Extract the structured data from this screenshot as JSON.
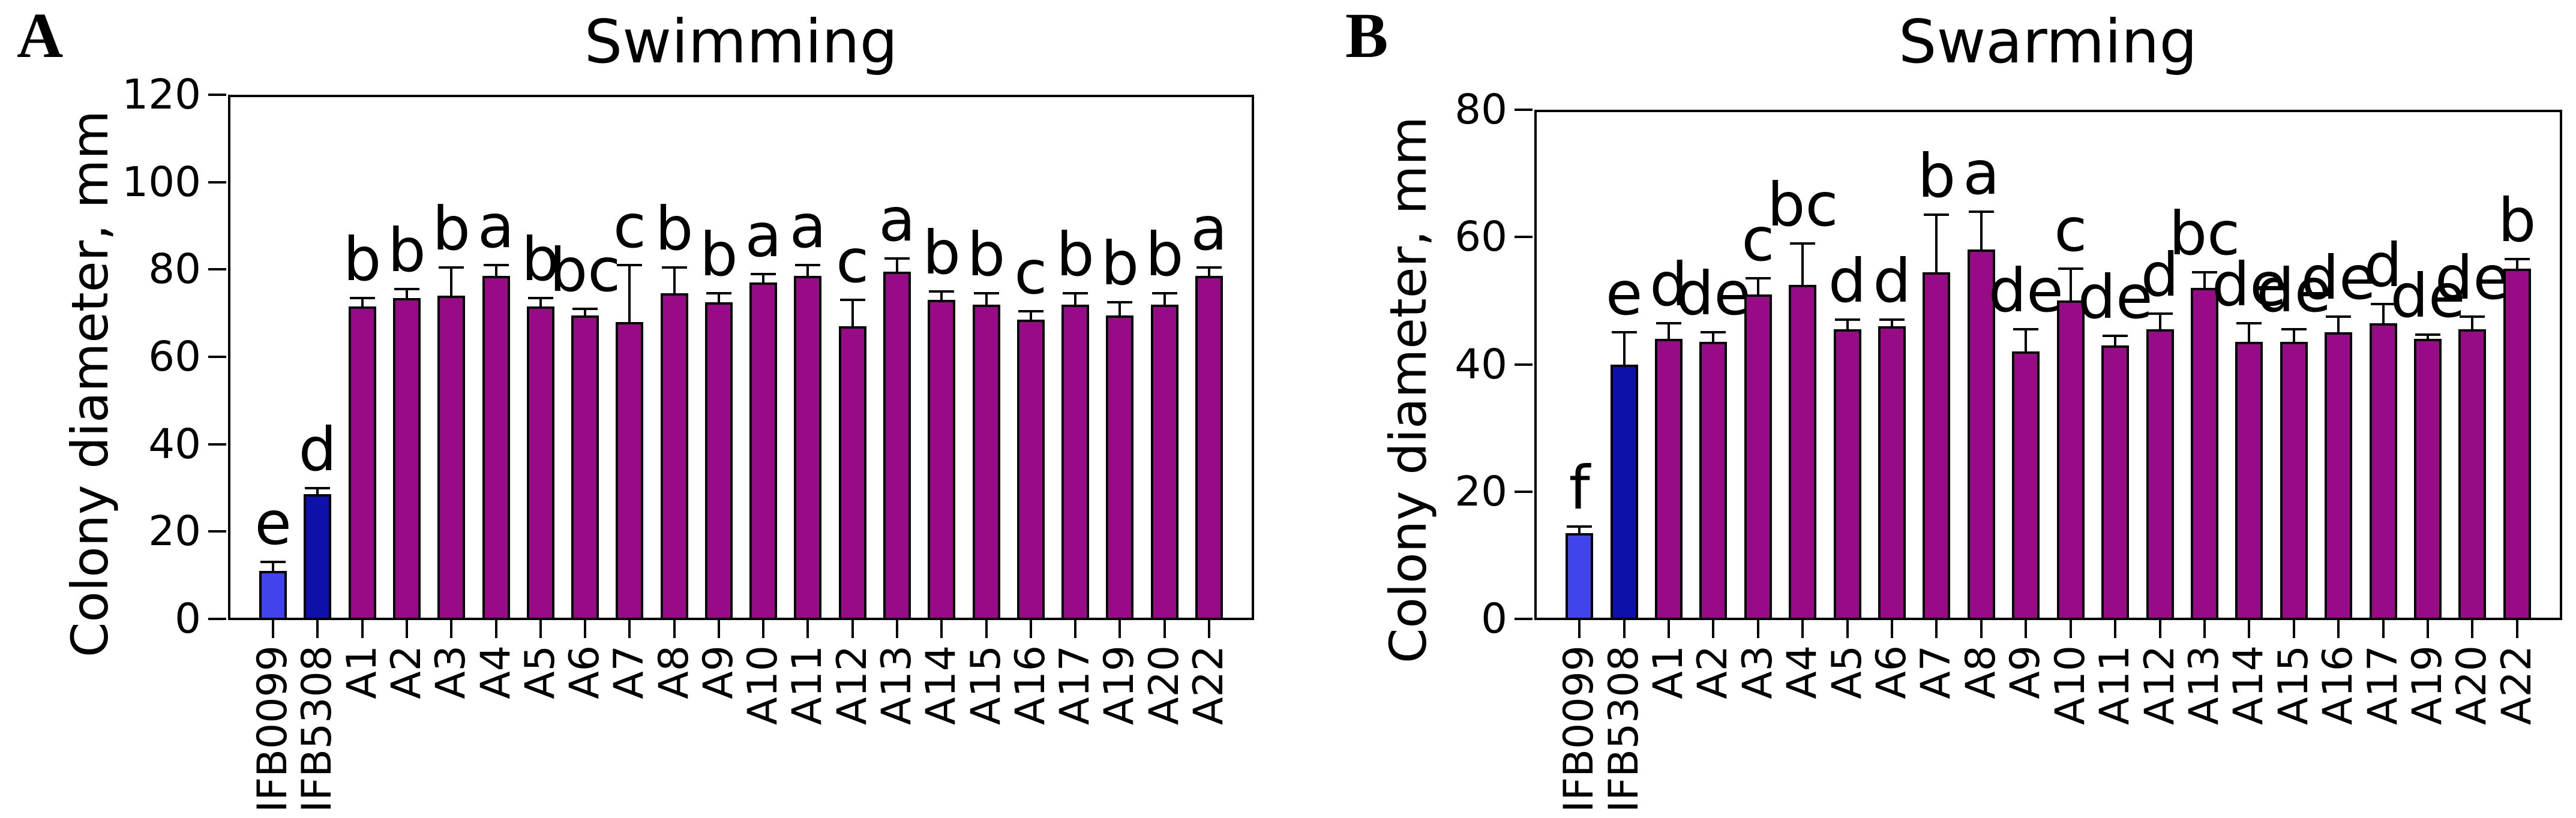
{
  "figure_caption_letters": [
    "A",
    "B"
  ],
  "colors": {
    "light_blue": "#4143EB",
    "dark_blue": "#0E10AA",
    "purple": "#970C86",
    "axis": "#000000"
  },
  "chart_data": [
    {
      "type": "bar",
      "panel_label": "A",
      "title": "Swimming",
      "xlabel": "",
      "ylabel": "Colony diameter, mm",
      "ylim": [
        0,
        120
      ],
      "yticks": [
        0,
        20,
        40,
        60,
        80,
        100,
        120
      ],
      "grid": false,
      "legend": "none",
      "categories": [
        "IFB0099",
        "IFB5308",
        "A1",
        "A2",
        "A3",
        "A4",
        "A5",
        "A6",
        "A7",
        "A8",
        "A9",
        "A10",
        "A11",
        "A12",
        "A13",
        "A14",
        "A15",
        "A16",
        "A17",
        "A19",
        "A20",
        "A22"
      ],
      "values": [
        11,
        28.5,
        71.5,
        73.5,
        74,
        78.5,
        71.5,
        69.5,
        68,
        74.5,
        72.5,
        77,
        78.5,
        67,
        79.5,
        73,
        72,
        68.5,
        72,
        69.5,
        72,
        78.5
      ],
      "errors": [
        2,
        1.5,
        2,
        2,
        6.5,
        2.5,
        2,
        1.5,
        13,
        6,
        2,
        2,
        2.5,
        6,
        3,
        2,
        2.5,
        2,
        2.5,
        3,
        2.5,
        2
      ],
      "sig_letters": [
        "e",
        "d",
        "b",
        "b",
        "b",
        "a",
        "b",
        "bc",
        "c",
        "b",
        "b",
        "a",
        "a",
        "c",
        "a",
        "b",
        "b",
        "c",
        "b",
        "b",
        "b",
        "a"
      ],
      "bar_color_keys": [
        "light_blue",
        "dark_blue",
        "purple",
        "purple",
        "purple",
        "purple",
        "purple",
        "purple",
        "purple",
        "purple",
        "purple",
        "purple",
        "purple",
        "purple",
        "purple",
        "purple",
        "purple",
        "purple",
        "purple",
        "purple",
        "purple",
        "purple"
      ]
    },
    {
      "type": "bar",
      "panel_label": "B",
      "title": "Swarming",
      "xlabel": "",
      "ylabel": "Colony diameter, mm",
      "ylim": [
        0,
        80
      ],
      "yticks": [
        0,
        20,
        40,
        60,
        80
      ],
      "grid": false,
      "legend": "none",
      "categories": [
        "IFB0099",
        "IFB5308",
        "A1",
        "A2",
        "A3",
        "A4",
        "A5",
        "A6",
        "A7",
        "A8",
        "A9",
        "A10",
        "A11",
        "A12",
        "A13",
        "A14",
        "A15",
        "A16",
        "A17",
        "A19",
        "A20",
        "A22"
      ],
      "values": [
        13.5,
        40,
        44,
        43.5,
        51,
        52.5,
        45.5,
        46,
        54.5,
        58,
        42,
        50,
        43,
        45.5,
        52,
        43.5,
        43.5,
        45,
        46.5,
        44,
        45.5,
        55
      ],
      "errors": [
        1,
        5,
        2.5,
        1.5,
        2.5,
        6.5,
        1.5,
        1,
        9,
        6,
        3.5,
        5,
        1.5,
        2.5,
        2.5,
        3,
        2,
        2.5,
        3,
        0.7,
        2,
        1.5
      ],
      "sig_letters": [
        "f",
        "e",
        "d",
        "de",
        "c",
        "bc",
        "d",
        "d",
        "b",
        "a",
        "de",
        "c",
        "de",
        "d",
        "bc",
        "de",
        "de",
        "de",
        "d",
        "de",
        "de",
        "b"
      ],
      "bar_color_keys": [
        "light_blue",
        "dark_blue",
        "purple",
        "purple",
        "purple",
        "purple",
        "purple",
        "purple",
        "purple",
        "purple",
        "purple",
        "purple",
        "purple",
        "purple",
        "purple",
        "purple",
        "purple",
        "purple",
        "purple",
        "purple",
        "purple",
        "purple"
      ]
    }
  ]
}
